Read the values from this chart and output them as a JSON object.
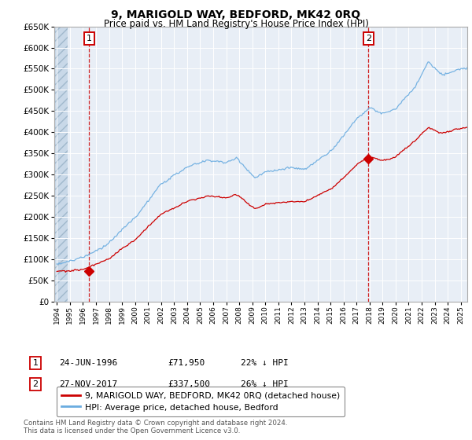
{
  "title": "9, MARIGOLD WAY, BEDFORD, MK42 0RQ",
  "subtitle": "Price paid vs. HM Land Registry's House Price Index (HPI)",
  "legend_line1": "9, MARIGOLD WAY, BEDFORD, MK42 0RQ (detached house)",
  "legend_line2": "HPI: Average price, detached house, Bedford",
  "footnote": "Contains HM Land Registry data © Crown copyright and database right 2024.\nThis data is licensed under the Open Government Licence v3.0.",
  "sale1_label": "1",
  "sale1_date": "24-JUN-1996",
  "sale1_price": "£71,950",
  "sale1_hpi": "22% ↓ HPI",
  "sale1_year": 1996.47,
  "sale1_value": 71950,
  "sale2_label": "2",
  "sale2_date": "27-NOV-2017",
  "sale2_price": "£337,500",
  "sale2_hpi": "26% ↓ HPI",
  "sale2_year": 2017.91,
  "sale2_value": 337500,
  "hpi_color": "#6aace0",
  "price_color": "#cc0000",
  "marker_box_color": "#cc0000",
  "bg_plot": "#e8eef6",
  "grid_color": "#ffffff",
  "ylim": [
    0,
    650000
  ],
  "yticks": [
    0,
    50000,
    100000,
    150000,
    200000,
    250000,
    300000,
    350000,
    400000,
    450000,
    500000,
    550000,
    600000,
    650000
  ],
  "xlim_start": 1993.8,
  "xlim_end": 2025.5,
  "hatch_end": 1994.85
}
